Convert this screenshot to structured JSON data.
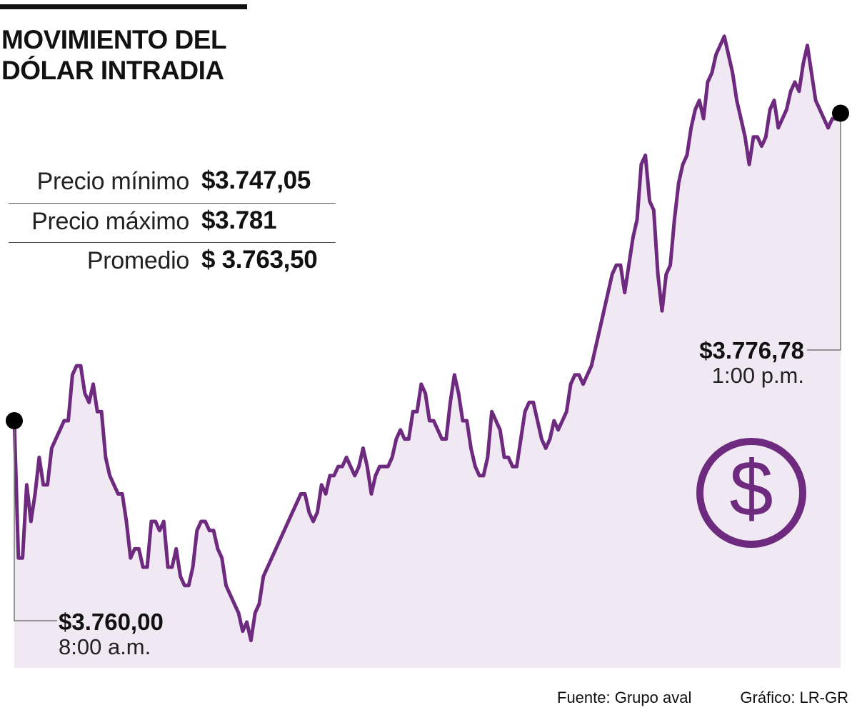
{
  "title": {
    "line1": "MOVIMIENTO DEL",
    "line2": "DÓLAR INTRADIA"
  },
  "stats": [
    {
      "label": "Precio mínimo",
      "value": "$3.747,05"
    },
    {
      "label": "Precio máximo",
      "value": "$3.781"
    },
    {
      "label": "Promedio",
      "value": "$ 3.763,50"
    }
  ],
  "callouts": {
    "start": {
      "price": "$3.760,00",
      "time": "8:00 a.m."
    },
    "end": {
      "price": "$3.776,78",
      "time": "1:00 p.m."
    }
  },
  "footer": {
    "source": "Fuente: Grupo aval",
    "credit": "Gráfico: LR-GR"
  },
  "colors": {
    "line": "#6e2a7e",
    "area": "#f0e9f4",
    "marker": "#000000"
  },
  "icon": "dollar-coin-icon",
  "chart_data": {
    "type": "area",
    "title": "MOVIMIENTO DEL DÓLAR INTRADIA",
    "xlabel": "",
    "ylabel": "",
    "x_range": [
      "8:00 a.m.",
      "1:00 p.m."
    ],
    "ylim": [
      3746.5,
      3781.5
    ],
    "grid": false,
    "legend": "none",
    "series": [
      {
        "values": [
          3760.0,
          3752.5,
          3752.5,
          3756.5,
          3754.5,
          3756.0,
          3758.0,
          3756.5,
          3756.5,
          3758.5,
          3759.0,
          3759.5,
          3760.0,
          3760.0,
          3762.5,
          3763.0,
          3763.0,
          3761.5,
          3761.0,
          3762.0,
          3760.5,
          3760.5,
          3758.0,
          3757.0,
          3756.5,
          3756.0,
          3756.0,
          3754.5,
          3752.5,
          3753.0,
          3753.0,
          3752.0,
          3752.0,
          3754.5,
          3754.5,
          3754.0,
          3754.5,
          3752.0,
          3752.0,
          3753.0,
          3751.5,
          3751.0,
          3751.0,
          3752.0,
          3754.0,
          3754.5,
          3754.5,
          3754.0,
          3754.0,
          3753.0,
          3752.5,
          3751.0,
          3750.5,
          3750.0,
          3749.5,
          3748.5,
          3749.0,
          3748.0,
          3749.5,
          3750.0,
          3751.5,
          3752.0,
          3752.5,
          3753.0,
          3753.5,
          3754.0,
          3754.5,
          3755.0,
          3755.5,
          3756.0,
          3756.0,
          3755.0,
          3754.5,
          3755.0,
          3756.5,
          3756.0,
          3757.0,
          3757.0,
          3757.5,
          3757.5,
          3758.0,
          3757.5,
          3757.0,
          3757.5,
          3758.5,
          3757.5,
          3756.0,
          3757.0,
          3757.5,
          3757.5,
          3757.5,
          3758.0,
          3759.0,
          3759.5,
          3759.0,
          3759.0,
          3760.5,
          3760.5,
          3762.0,
          3761.5,
          3760.0,
          3760.0,
          3759.5,
          3759.0,
          3759.0,
          3761.0,
          3762.5,
          3761.5,
          3760.0,
          3760.0,
          3758.5,
          3757.5,
          3757.0,
          3757.0,
          3758.0,
          3760.5,
          3760.0,
          3759.5,
          3758.0,
          3758.0,
          3757.5,
          3757.5,
          3759.0,
          3760.5,
          3761.0,
          3761.0,
          3760.0,
          3759.0,
          3758.5,
          3759.0,
          3760.0,
          3759.5,
          3760.0,
          3760.5,
          3762.0,
          3762.5,
          3762.5,
          3762.0,
          3762.5,
          3763.0,
          3764.0,
          3765.0,
          3766.0,
          3767.0,
          3768.0,
          3768.5,
          3768.5,
          3767.0,
          3768.5,
          3770.0,
          3771.0,
          3774.0,
          3774.5,
          3772.0,
          3771.5,
          3768.0,
          3766.0,
          3768.0,
          3768.5,
          3771.0,
          3773.0,
          3774.0,
          3774.5,
          3776.0,
          3777.0,
          3777.5,
          3776.5,
          3778.5,
          3779.0,
          3780.0,
          3780.5,
          3781.0,
          3780.0,
          3779.0,
          3777.5,
          3776.5,
          3775.5,
          3774.0,
          3775.5,
          3775.5,
          3775.0,
          3775.5,
          3777.0,
          3777.5,
          3776.0,
          3776.5,
          3777.0,
          3778.0,
          3778.5,
          3778.0,
          3779.5,
          3780.5,
          3779.0,
          3777.5,
          3777.0,
          3776.5,
          3776.0,
          3776.5,
          3776.5,
          3776.8
        ]
      }
    ]
  }
}
